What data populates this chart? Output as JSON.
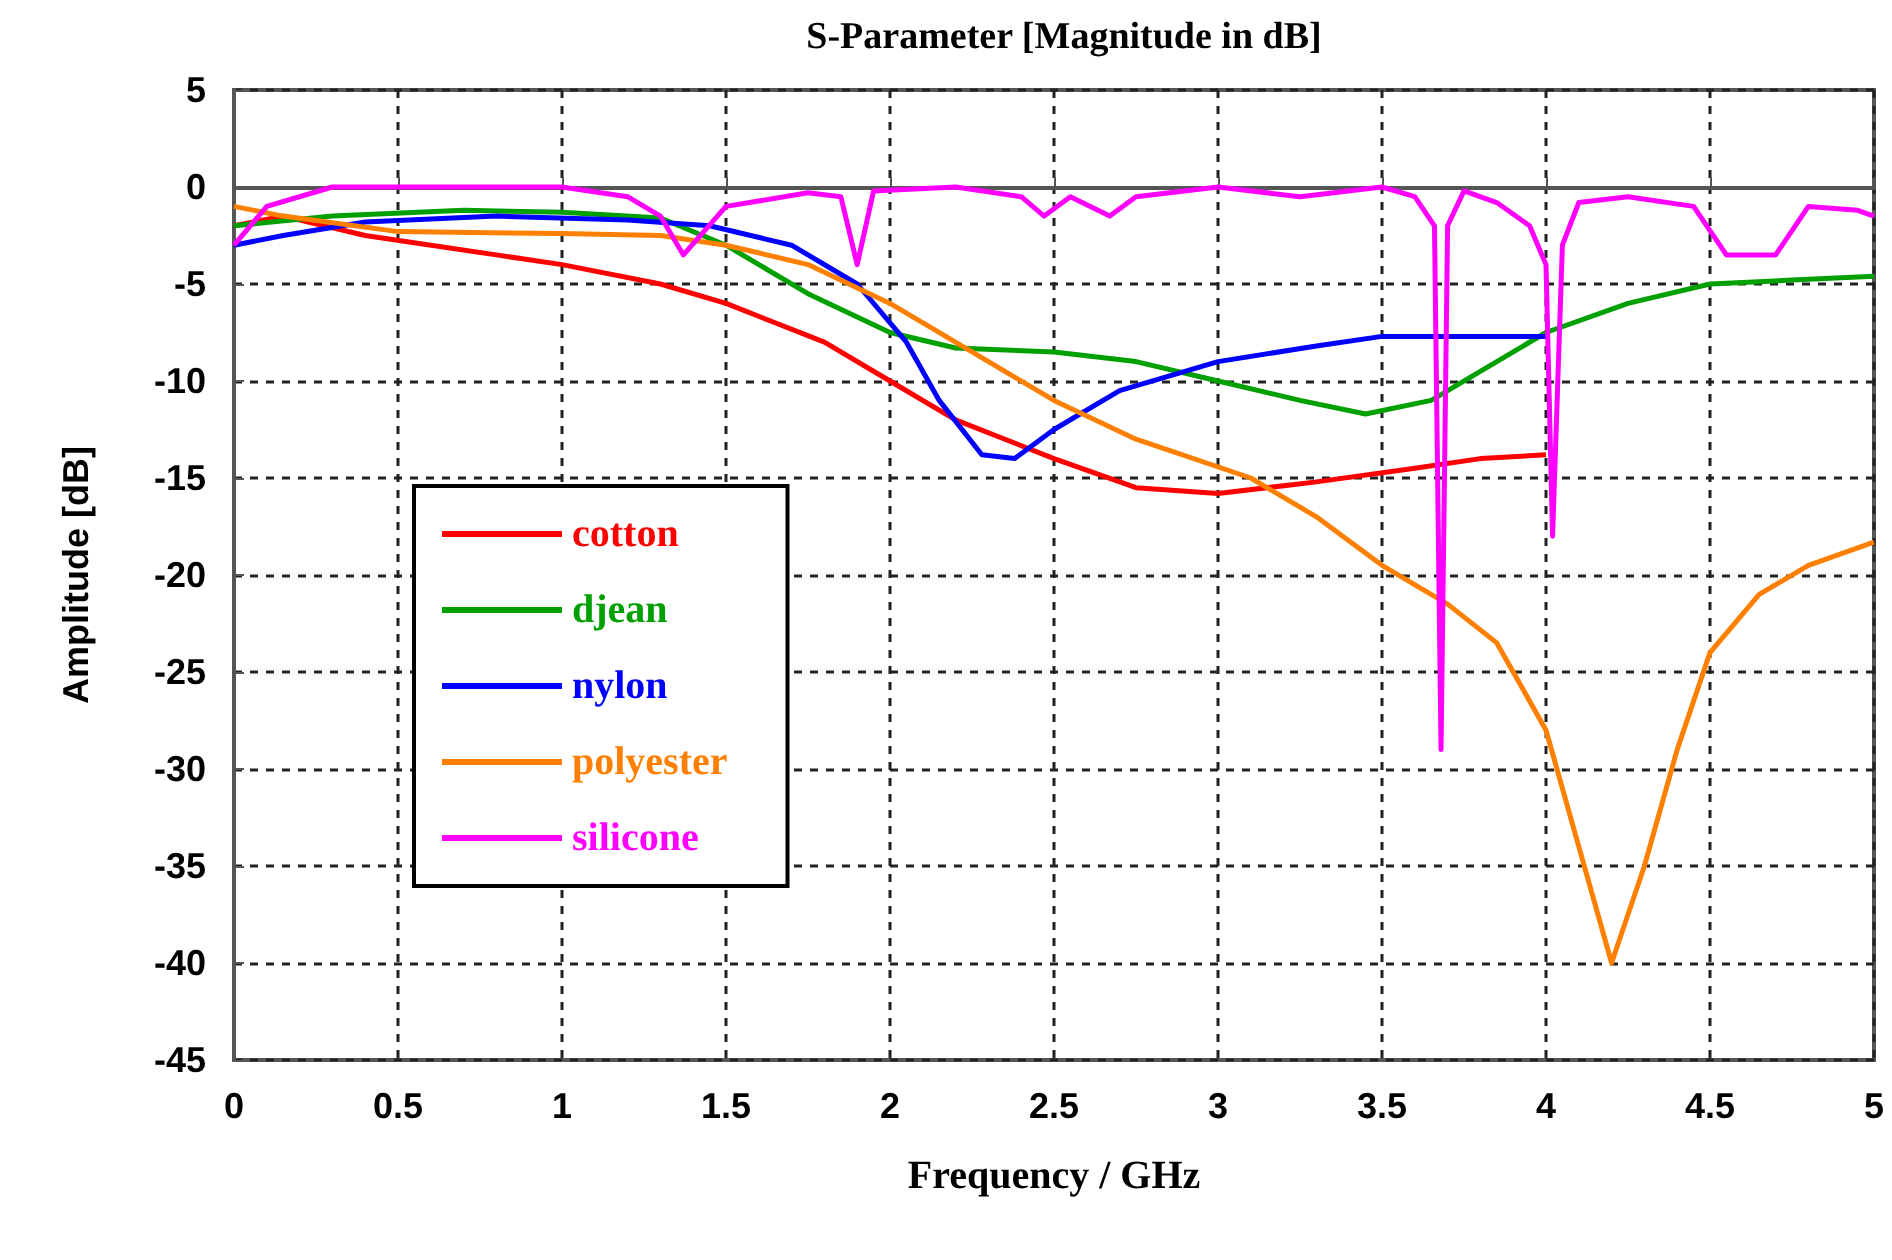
{
  "chart_data": {
    "type": "line",
    "title": "S-Parameter [Magnitude in dB]",
    "xlabel": "Frequency / GHz",
    "ylabel": "Amplitude [dB]",
    "xlim": [
      0,
      5
    ],
    "xticks": [
      0,
      0.5,
      1,
      1.5,
      2,
      2.5,
      3,
      3.5,
      4,
      4.5,
      5
    ],
    "ylim": [
      -45,
      5
    ],
    "yticks": [
      -45,
      -40,
      -35,
      -30,
      -25,
      -20,
      -15,
      -10,
      -5,
      0,
      5
    ],
    "grid": true,
    "legend": "left",
    "marker": "none",
    "line_style": "solid",
    "series": [
      {
        "name": "cotton",
        "color": "#ff0000",
        "x": [
          0,
          0.15,
          0.4,
          0.8,
          1,
          1.3,
          1.5,
          1.8,
          2,
          2.2,
          2.5,
          2.75,
          3,
          3.3,
          3.6,
          3.8,
          4.0
        ],
        "values": [
          -2,
          -1.5,
          -2.5,
          -3.5,
          -4,
          -5,
          -6,
          -8,
          -10,
          -12,
          -14,
          -15.5,
          -15.8,
          -15.2,
          -14.5,
          -14,
          -13.8
        ]
      },
      {
        "name": "djean",
        "color": "#00a000",
        "x": [
          0,
          0.3,
          0.7,
          1,
          1.3,
          1.5,
          1.75,
          2,
          2.2,
          2.5,
          2.75,
          3,
          3.25,
          3.45,
          3.65,
          3.85,
          4.0,
          4.25,
          4.5,
          4.75,
          5
        ],
        "values": [
          -2,
          -1.5,
          -1.2,
          -1.3,
          -1.6,
          -3,
          -5.5,
          -7.5,
          -8.3,
          -8.5,
          -9,
          -10,
          -11,
          -11.7,
          -11,
          -9,
          -7.5,
          -6,
          -5,
          -4.8,
          -4.6
        ]
      },
      {
        "name": "nylon",
        "color": "#0000ff",
        "x": [
          0,
          0.15,
          0.4,
          0.8,
          1.2,
          1.45,
          1.7,
          1.9,
          2.05,
          2.15,
          2.28,
          2.38,
          2.5,
          2.7,
          3,
          3.3,
          3.5,
          4.0
        ],
        "values": [
          -3,
          -2.5,
          -1.8,
          -1.5,
          -1.7,
          -2,
          -3,
          -5,
          -8,
          -11,
          -13.8,
          -14,
          -12.5,
          -10.5,
          -9,
          -8.2,
          -7.7,
          -7.7
        ]
      },
      {
        "name": "polyester",
        "color": "#ff8000",
        "x": [
          0,
          0.15,
          0.5,
          1,
          1.3,
          1.5,
          1.75,
          2,
          2.25,
          2.5,
          2.75,
          3.1,
          3.3,
          3.5,
          3.7,
          3.85,
          4.0,
          4.1,
          4.2,
          4.3,
          4.4,
          4.5,
          4.65,
          4.8,
          5
        ],
        "values": [
          -1,
          -1.5,
          -2.3,
          -2.4,
          -2.5,
          -3,
          -4,
          -6,
          -8.5,
          -11,
          -13,
          -15,
          -17,
          -19.5,
          -21.5,
          -23.5,
          -28,
          -34,
          -40,
          -35,
          -29,
          -24,
          -21,
          -19.5,
          -18.3
        ]
      },
      {
        "name": "silicone",
        "color": "#ff00ff",
        "x": [
          0,
          0.1,
          0.3,
          1,
          1.2,
          1.3,
          1.37,
          1.5,
          1.75,
          1.85,
          1.9,
          1.95,
          2.2,
          2.4,
          2.47,
          2.55,
          2.67,
          2.75,
          3,
          3.25,
          3.5,
          3.6,
          3.66,
          3.68,
          3.7,
          3.75,
          3.85,
          3.95,
          4.0,
          4.02,
          4.05,
          4.1,
          4.25,
          4.45,
          4.55,
          4.7,
          4.8,
          4.95,
          5
        ],
        "values": [
          -3,
          -1,
          0,
          0,
          -0.5,
          -1.5,
          -3.5,
          -1,
          -0.3,
          -0.5,
          -4,
          -0.2,
          0,
          -0.5,
          -1.5,
          -0.5,
          -1.5,
          -0.5,
          0,
          -0.5,
          0,
          -0.5,
          -2,
          -29,
          -2,
          -0.2,
          -0.8,
          -2,
          -4,
          -18,
          -3,
          -0.8,
          -0.5,
          -1,
          -3.5,
          -3.5,
          -1,
          -1.2,
          -1.5
        ]
      }
    ]
  }
}
